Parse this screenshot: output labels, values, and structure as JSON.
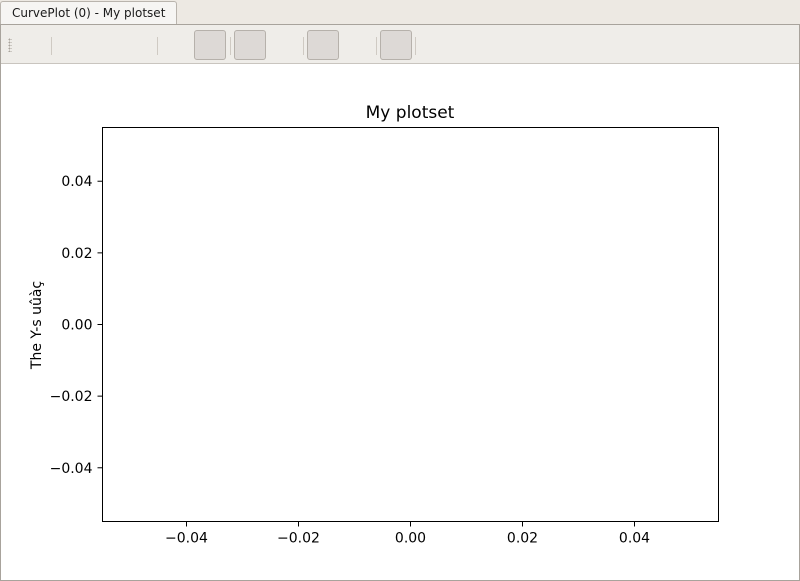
{
  "tab": {
    "label": "CurvePlot (0) - My plotset"
  },
  "toolbar": {
    "buttons": [
      {
        "name": "toolbar-button-1"
      },
      {
        "name": "toolbar-button-2"
      },
      {
        "name": "toolbar-button-3"
      },
      {
        "name": "toolbar-button-4"
      }
    ]
  },
  "chart_data": {
    "type": "line",
    "title": "My plotset",
    "xlabel": "",
    "ylabel": "The Y-s uûàç",
    "xlim": [
      -0.055,
      0.055
    ],
    "ylim": [
      -0.055,
      0.055
    ],
    "xticks": [
      -0.04,
      -0.02,
      0.0,
      0.02,
      0.04
    ],
    "yticks": [
      0.04,
      0.02,
      0.0,
      -0.02,
      -0.04
    ],
    "xtick_labels": [
      "−0.04",
      "−0.02",
      "0.00",
      "0.02",
      "0.04"
    ],
    "ytick_labels": [
      "0.04",
      "0.02",
      "0.00",
      "−0.02",
      "−0.04"
    ],
    "series": [],
    "grid": false
  }
}
